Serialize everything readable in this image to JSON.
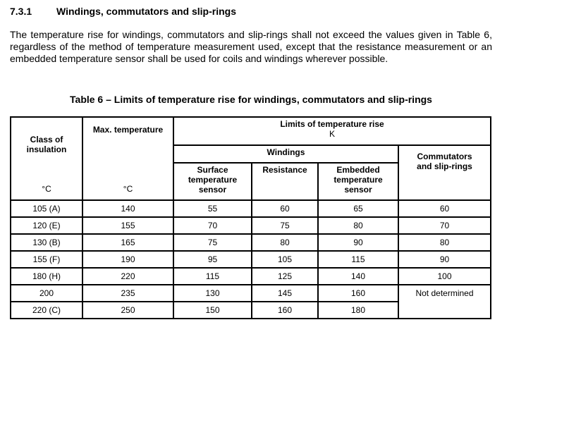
{
  "section": {
    "number": "7.3.1",
    "title": "Windings, commutators and slip-rings"
  },
  "paragraph": "The temperature rise for windings, commutators and slip-rings shall not exceed the values given in Table 6, regardless of the method of temperature measurement used, except that the resistance measurement or an embedded temperature sensor shall be used for coils and windings wherever possible.",
  "table": {
    "caption": "Table 6 – Limits of temperature rise for windings, commutators and slip-rings",
    "headers": {
      "class": "Class of insulation",
      "class_unit": "°C",
      "max": "Max. temperature",
      "max_unit": "°C",
      "limits": "Limits of temperature rise",
      "limits_unit": "K",
      "windings": "Windings",
      "surface": "Surface temperature sensor",
      "resistance": "Resistance",
      "embedded": "Embedded temperature sensor",
      "commutators": "Commutators and slip-rings"
    },
    "rows": [
      [
        "105 (A)",
        "140",
        "55",
        "60",
        "65",
        "60"
      ],
      [
        "120 (E)",
        "155",
        "70",
        "75",
        "80",
        "70"
      ],
      [
        "130 (B)",
        "165",
        "75",
        "80",
        "90",
        "80"
      ],
      [
        "155 (F)",
        "190",
        "95",
        "105",
        "115",
        "90"
      ],
      [
        "180 (H)",
        "220",
        "115",
        "125",
        "140",
        "100"
      ],
      [
        "200",
        "235",
        "130",
        "145",
        "160",
        "Not determined"
      ],
      [
        "220 (C)",
        "250",
        "150",
        "160",
        "180"
      ]
    ]
  }
}
